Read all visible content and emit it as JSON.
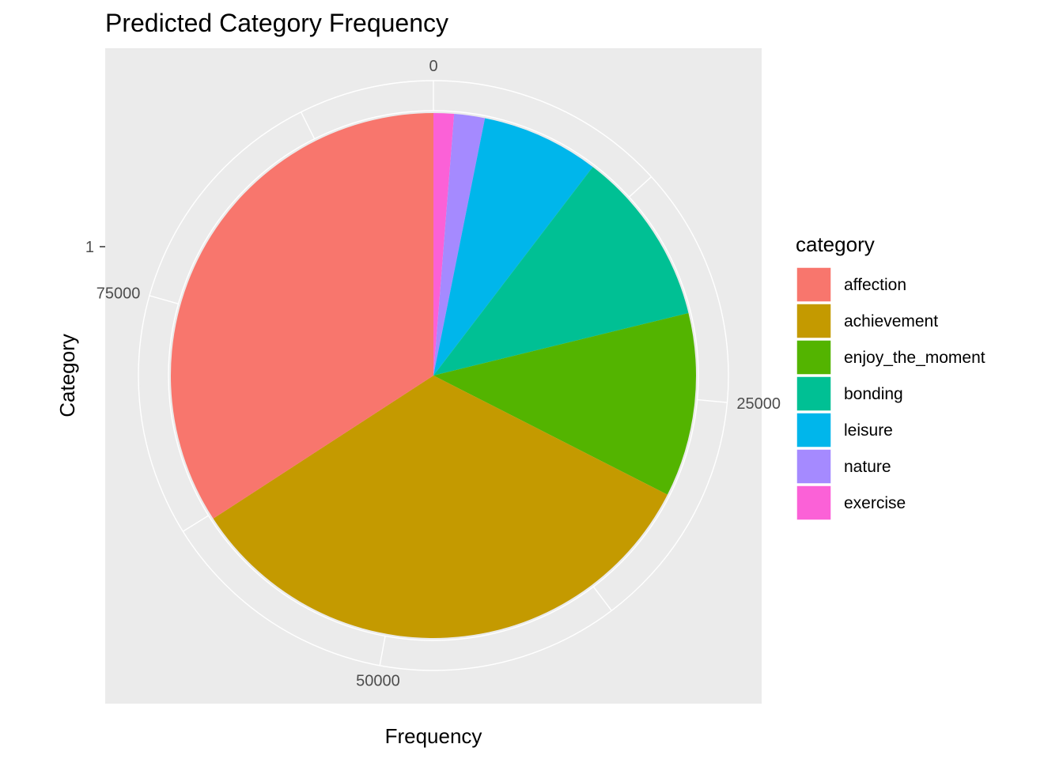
{
  "chart_data": {
    "type": "pie",
    "title": "Predicted Category Frequency",
    "xlabel": "Frequency",
    "ylabel": "Category",
    "y_tick_labels": [
      "1"
    ],
    "radial_ticks": [
      0,
      25000,
      50000,
      75000
    ],
    "radial_max": 94500,
    "radial_start": "top",
    "direction": "clockwise",
    "draw_order": [
      "exercise",
      "nature",
      "leisure",
      "bonding",
      "enjoy_the_moment",
      "achievement",
      "affection"
    ],
    "legend": {
      "title": "category",
      "position": "right",
      "entries": [
        "affection",
        "achievement",
        "enjoy_the_moment",
        "bonding",
        "leisure",
        "nature",
        "exercise"
      ]
    },
    "series": [
      {
        "name": "affection",
        "value": 32600,
        "color": "#F8766D"
      },
      {
        "name": "achievement",
        "value": 31800,
        "color": "#C49A00"
      },
      {
        "name": "enjoy_the_moment",
        "value": 10800,
        "color": "#53B400"
      },
      {
        "name": "bonding",
        "value": 10300,
        "color": "#00C094"
      },
      {
        "name": "leisure",
        "value": 6900,
        "color": "#00B6EB"
      },
      {
        "name": "nature",
        "value": 1800,
        "color": "#A58AFF"
      },
      {
        "name": "exercise",
        "value": 1200,
        "color": "#FB61D7"
      }
    ],
    "panel_background": "#EBEBEB",
    "grid": true,
    "grid_color": "#FFFFFF"
  }
}
